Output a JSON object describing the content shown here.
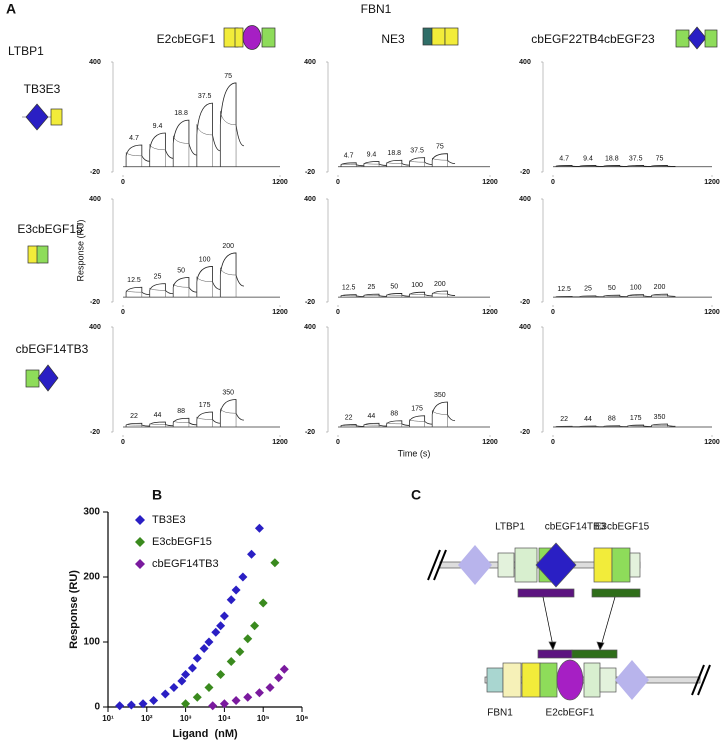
{
  "labels": {
    "panel_a": "A",
    "panel_b": "B",
    "panel_c": "C",
    "fbn1": "FBN1",
    "ltbp1": "LTBP1",
    "columns": [
      "E2cbEGF1",
      "NE3",
      "cbEGF22TB4cbEGF23"
    ],
    "rows": [
      {
        "name": "TB3E3",
        "color": "#3a2fc4"
      },
      {
        "name": "E3cbEGF15",
        "color": "#3a8a1e"
      },
      {
        "name": "cbEGF14TB3",
        "color": "#7a1a9e"
      }
    ]
  },
  "chart_data": [
    {
      "type": "sensorgram",
      "ylim": [
        -20,
        400
      ],
      "yticks": [
        400,
        -20
      ],
      "xlim": [
        0,
        1200
      ],
      "xticks": [
        0,
        1200
      ],
      "concentrations": [
        4.7,
        9.4,
        18.8,
        37.5,
        75
      ],
      "values": [
        83,
        129,
        178,
        243,
        320
      ]
    },
    {
      "type": "sensorgram",
      "ylim": [
        -20,
        400
      ],
      "yticks": [
        400,
        -20
      ],
      "xlim": [
        0,
        1200
      ],
      "xticks": [
        0,
        1200
      ],
      "concentrations": [
        4.7,
        9.4,
        18.8,
        37.5,
        75
      ],
      "values": [
        15,
        20,
        25,
        35,
        50
      ]
    },
    {
      "type": "sensorgram",
      "ylim": [
        -20,
        400
      ],
      "yticks": [
        400,
        -20
      ],
      "xlim": [
        0,
        1200
      ],
      "xticks": [
        0,
        1200
      ],
      "concentrations": [
        4.7,
        9.4,
        18.8,
        37.5,
        75
      ],
      "values": [
        5,
        5,
        5,
        5,
        5
      ]
    },
    {
      "type": "sensorgram",
      "y_label": "Response (RU)",
      "ylim": [
        -20,
        400
      ],
      "yticks": [
        400,
        -20
      ],
      "xlim": [
        0,
        1200
      ],
      "xticks": [
        0,
        1200
      ],
      "concentrations": [
        12.5,
        25,
        50,
        100,
        200
      ],
      "values": [
        40,
        55,
        80,
        125,
        180
      ]
    },
    {
      "type": "sensorgram",
      "ylim": [
        -20,
        400
      ],
      "yticks": [
        400,
        -20
      ],
      "xlim": [
        0,
        1200
      ],
      "xticks": [
        0,
        1200
      ],
      "concentrations": [
        12.5,
        25,
        50,
        100,
        200
      ],
      "values": [
        10,
        12,
        15,
        20,
        25
      ]
    },
    {
      "type": "sensorgram",
      "ylim": [
        -20,
        400
      ],
      "yticks": [
        400,
        -20
      ],
      "xlim": [
        0,
        1200
      ],
      "xticks": [
        0,
        1200
      ],
      "concentrations": [
        12.5,
        25,
        50,
        100,
        200
      ],
      "values": [
        3,
        5,
        8,
        10,
        12
      ]
    },
    {
      "type": "sensorgram",
      "ylim": [
        -20,
        400
      ],
      "yticks": [
        400,
        -20
      ],
      "xlim": [
        0,
        1200
      ],
      "xticks": [
        0,
        1200
      ],
      "concentrations": [
        22,
        44,
        88,
        175,
        350
      ],
      "values": [
        15,
        20,
        35,
        60,
        110
      ]
    },
    {
      "type": "sensorgram",
      "x_label": "Time (s)",
      "ylim": [
        -20,
        400
      ],
      "yticks": [
        400,
        -20
      ],
      "xlim": [
        0,
        1200
      ],
      "xticks": [
        0,
        1200
      ],
      "concentrations": [
        22,
        44,
        88,
        175,
        350
      ],
      "values": [
        10,
        15,
        25,
        45,
        100
      ]
    },
    {
      "type": "sensorgram",
      "ylim": [
        -20,
        400
      ],
      "yticks": [
        400,
        -20
      ],
      "xlim": [
        0,
        1200
      ],
      "xticks": [
        0,
        1200
      ],
      "concentrations": [
        22,
        44,
        88,
        175,
        350
      ],
      "values": [
        3,
        4,
        5,
        8,
        12
      ]
    },
    {
      "type": "scatter",
      "x_label": "Ligand  (nM)",
      "y_label": "Response (RU)",
      "xscale": "log",
      "xlim": [
        10,
        1000000
      ],
      "xticks": [
        {
          "value": 10,
          "label": "10¹"
        },
        {
          "value": 100,
          "label": "10²"
        },
        {
          "value": 1000,
          "label": "10³"
        },
        {
          "value": 10000,
          "label": "10⁴"
        },
        {
          "value": 100000,
          "label": "10⁵"
        },
        {
          "value": 1000000,
          "label": "10⁶"
        }
      ],
      "ylim": [
        0,
        300
      ],
      "yticks": [
        0,
        100,
        200,
        300
      ],
      "series": [
        {
          "name": "TB3E3",
          "color": "#2a1fc4",
          "x": [
            20,
            40,
            80,
            150,
            300,
            500,
            800,
            1000,
            1500,
            2000,
            3000,
            4000,
            6000,
            8000,
            10000,
            15000,
            20000,
            30000,
            50000,
            80000
          ],
          "values": [
            2,
            3,
            5,
            10,
            20,
            30,
            40,
            50,
            60,
            75,
            90,
            100,
            115,
            125,
            140,
            165,
            180,
            200,
            235,
            275
          ]
        },
        {
          "name": "E3cbEGF15",
          "color": "#3a8a1e",
          "x": [
            1000,
            2000,
            4000,
            8000,
            15000,
            25000,
            40000,
            60000,
            100000,
            200000
          ],
          "values": [
            5,
            15,
            30,
            50,
            70,
            85,
            105,
            125,
            160,
            222
          ]
        },
        {
          "name": "cbEGF14TB3",
          "color": "#7a1a9e",
          "x": [
            5000,
            10000,
            20000,
            40000,
            80000,
            150000,
            250000,
            350000
          ],
          "values": [
            2,
            5,
            10,
            15,
            22,
            30,
            45,
            58
          ]
        }
      ]
    }
  ],
  "diagram": {
    "top_label": "LTBP1",
    "top_domains": [
      "cbEGF14TB3",
      "E3cbEGF15"
    ],
    "bottom_label": "FBN1",
    "bottom_domain": "E2cbEGF1"
  }
}
